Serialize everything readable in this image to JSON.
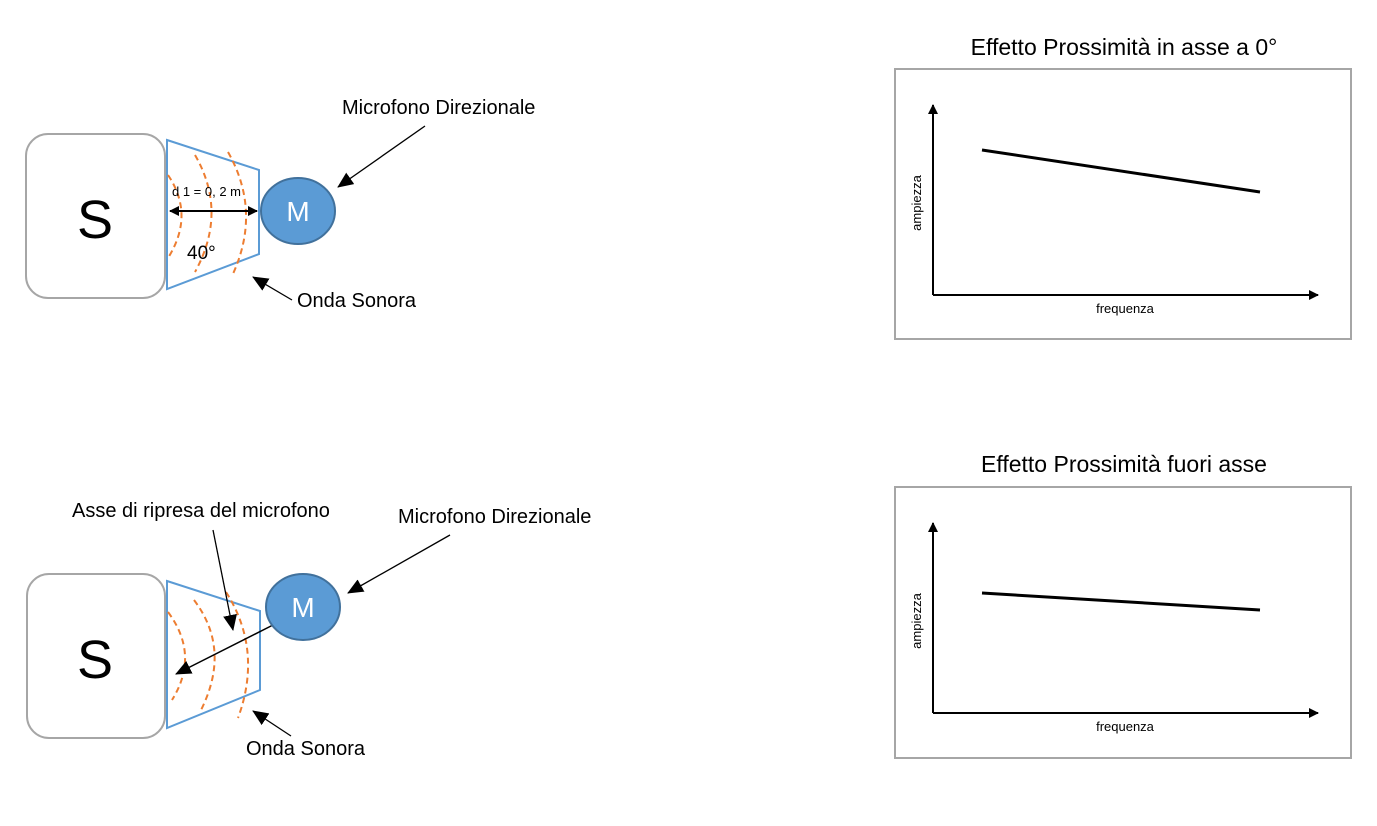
{
  "diagram_top": {
    "source_label": "S",
    "mic_label": "M",
    "mic_name": "Microfono Direzionale",
    "wave_label": "Onda Sonora",
    "distance_label": "d 1 = 0, 2 m",
    "angle_label": "40°"
  },
  "diagram_bottom": {
    "source_label": "S",
    "mic_label": "M",
    "mic_name": "Microfono Direzionale",
    "wave_label": "Onda Sonora",
    "axis_label": "Asse di ripresa del microfono"
  },
  "chart_top": {
    "title": "Effetto Prossimità in asse a 0°",
    "xlabel": "frequenza",
    "ylabel": "ampiezza"
  },
  "chart_bottom": {
    "title": "Effetto Prossimità fuori asse",
    "xlabel": "frequenza",
    "ylabel": "ampiezza"
  },
  "colors": {
    "mic_fill": "#5b9bd5",
    "mic_stroke": "#41719c",
    "cone_stroke": "#5b9bd5",
    "wave_stroke": "#ed7d31",
    "box_stroke": "#a6a6a6"
  }
}
